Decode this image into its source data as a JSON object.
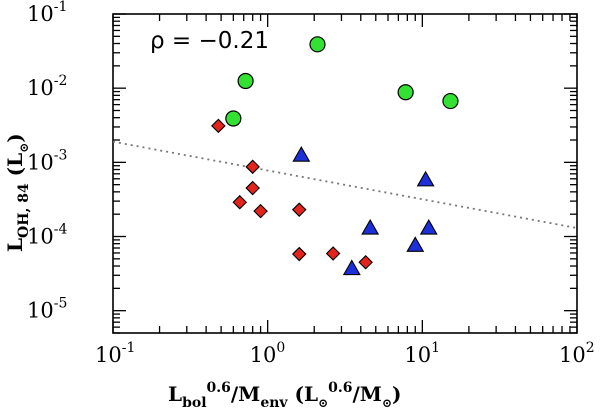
{
  "chart_data": {
    "type": "scatter",
    "title": "",
    "xscale": "log",
    "yscale": "log",
    "xlim": [
      0.1,
      100
    ],
    "ylim": [
      5e-06,
      0.1
    ],
    "xticks": [
      {
        "value": 0.1,
        "base": "10",
        "exp": "-1"
      },
      {
        "value": 1,
        "base": "10",
        "exp": "0"
      },
      {
        "value": 10,
        "base": "10",
        "exp": "1"
      },
      {
        "value": 100,
        "base": "10",
        "exp": "2"
      }
    ],
    "yticks": [
      {
        "value": 1e-05,
        "base": "10",
        "exp": "-5"
      },
      {
        "value": 0.0001,
        "base": "10",
        "exp": "-4"
      },
      {
        "value": 0.001,
        "base": "10",
        "exp": "-3"
      },
      {
        "value": 0.01,
        "base": "10",
        "exp": "-2"
      },
      {
        "value": 0.1,
        "base": "10",
        "exp": "-1"
      }
    ],
    "xlabel": {
      "main": "L",
      "sub1": "bol",
      "sup1": "0.6",
      "mid": "/M",
      "sub2": "env",
      "units_open": " (L",
      "sup2": "0.6",
      "units_mid": "/M",
      "units_close": ")"
    },
    "ylabel": {
      "main": "L",
      "sub": "OH, 84",
      "units_open": " (L",
      "units_close": ")"
    },
    "annotation": "ρ = −0.21",
    "series": [
      {
        "name": "circles",
        "marker": "circle",
        "color": "#33e133",
        "points": [
          {
            "x": 0.6,
            "y": 0.0039
          },
          {
            "x": 0.72,
            "y": 0.0125
          },
          {
            "x": 2.1,
            "y": 0.039
          },
          {
            "x": 7.8,
            "y": 0.0088
          },
          {
            "x": 15.2,
            "y": 0.0067
          }
        ]
      },
      {
        "name": "diamonds",
        "marker": "diamond",
        "color": "#e3241c",
        "points": [
          {
            "x": 0.48,
            "y": 0.0031
          },
          {
            "x": 0.8,
            "y": 0.00087
          },
          {
            "x": 0.8,
            "y": 0.00045
          },
          {
            "x": 0.66,
            "y": 0.00029
          },
          {
            "x": 0.9,
            "y": 0.00022
          },
          {
            "x": 1.6,
            "y": 0.00023
          },
          {
            "x": 1.6,
            "y": 5.8e-05
          },
          {
            "x": 2.65,
            "y": 5.9e-05
          },
          {
            "x": 4.3,
            "y": 4.5e-05
          }
        ]
      },
      {
        "name": "triangles",
        "marker": "triangle",
        "color": "#1c2fd8",
        "points": [
          {
            "x": 1.65,
            "y": 0.00125
          },
          {
            "x": 10.5,
            "y": 0.00058
          },
          {
            "x": 4.6,
            "y": 0.00013
          },
          {
            "x": 11.0,
            "y": 0.00013
          },
          {
            "x": 9.0,
            "y": 7.6e-05
          },
          {
            "x": 3.5,
            "y": 3.7e-05
          }
        ]
      }
    ],
    "fit_line": {
      "style": "dotted",
      "color": "#777777",
      "x": [
        0.1,
        100
      ],
      "y": [
        0.0019,
        0.00013
      ]
    }
  }
}
